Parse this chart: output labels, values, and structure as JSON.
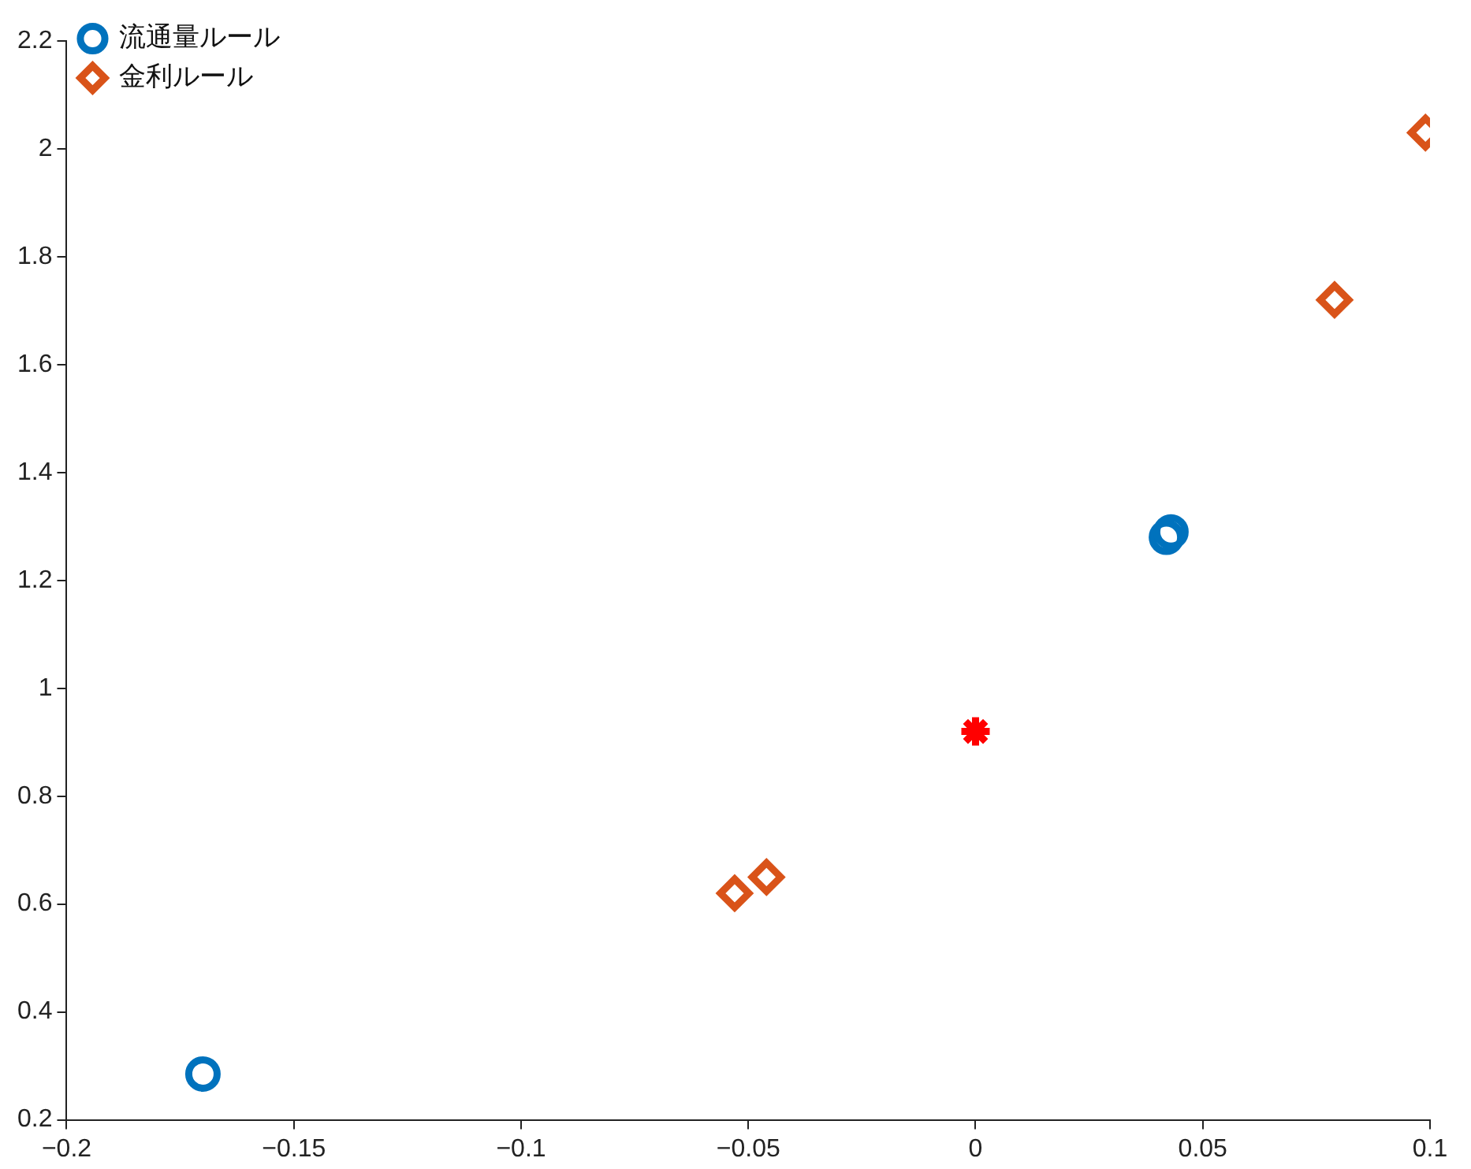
{
  "chart_data": {
    "type": "scatter",
    "series": [
      {
        "name": "流通量ルール",
        "color": "#0072bd",
        "marker": "circle",
        "x": [
          -0.17,
          0.042,
          0.043
        ],
        "values": [
          0.285,
          1.28,
          1.29
        ]
      },
      {
        "name": "金利ルール",
        "color": "#d95319",
        "marker": "diamond",
        "x": [
          -0.053,
          -0.046,
          0.079,
          0.099
        ],
        "values": [
          0.62,
          0.65,
          1.72,
          2.03
        ]
      },
      {
        "color": "#ff0000",
        "marker": "cross",
        "x": [
          0
        ],
        "values": [
          0.92
        ]
      }
    ],
    "xlim": [
      -0.2,
      0.1
    ],
    "xticks": [
      {
        "value": -0.2,
        "label": "−0.2"
      },
      {
        "value": -0.15,
        "label": "−0.15"
      },
      {
        "value": -0.1,
        "label": "−0.1"
      },
      {
        "value": -0.05,
        "label": "−0.05"
      },
      0,
      0.05,
      0.1
    ],
    "ylim": [
      0.2,
      2.2
    ],
    "yticks": [
      0.2,
      0.4,
      0.6,
      0.8,
      1,
      1.2,
      1.4,
      1.6,
      1.8,
      2,
      2.2
    ],
    "grid": false,
    "legend": "top left"
  }
}
